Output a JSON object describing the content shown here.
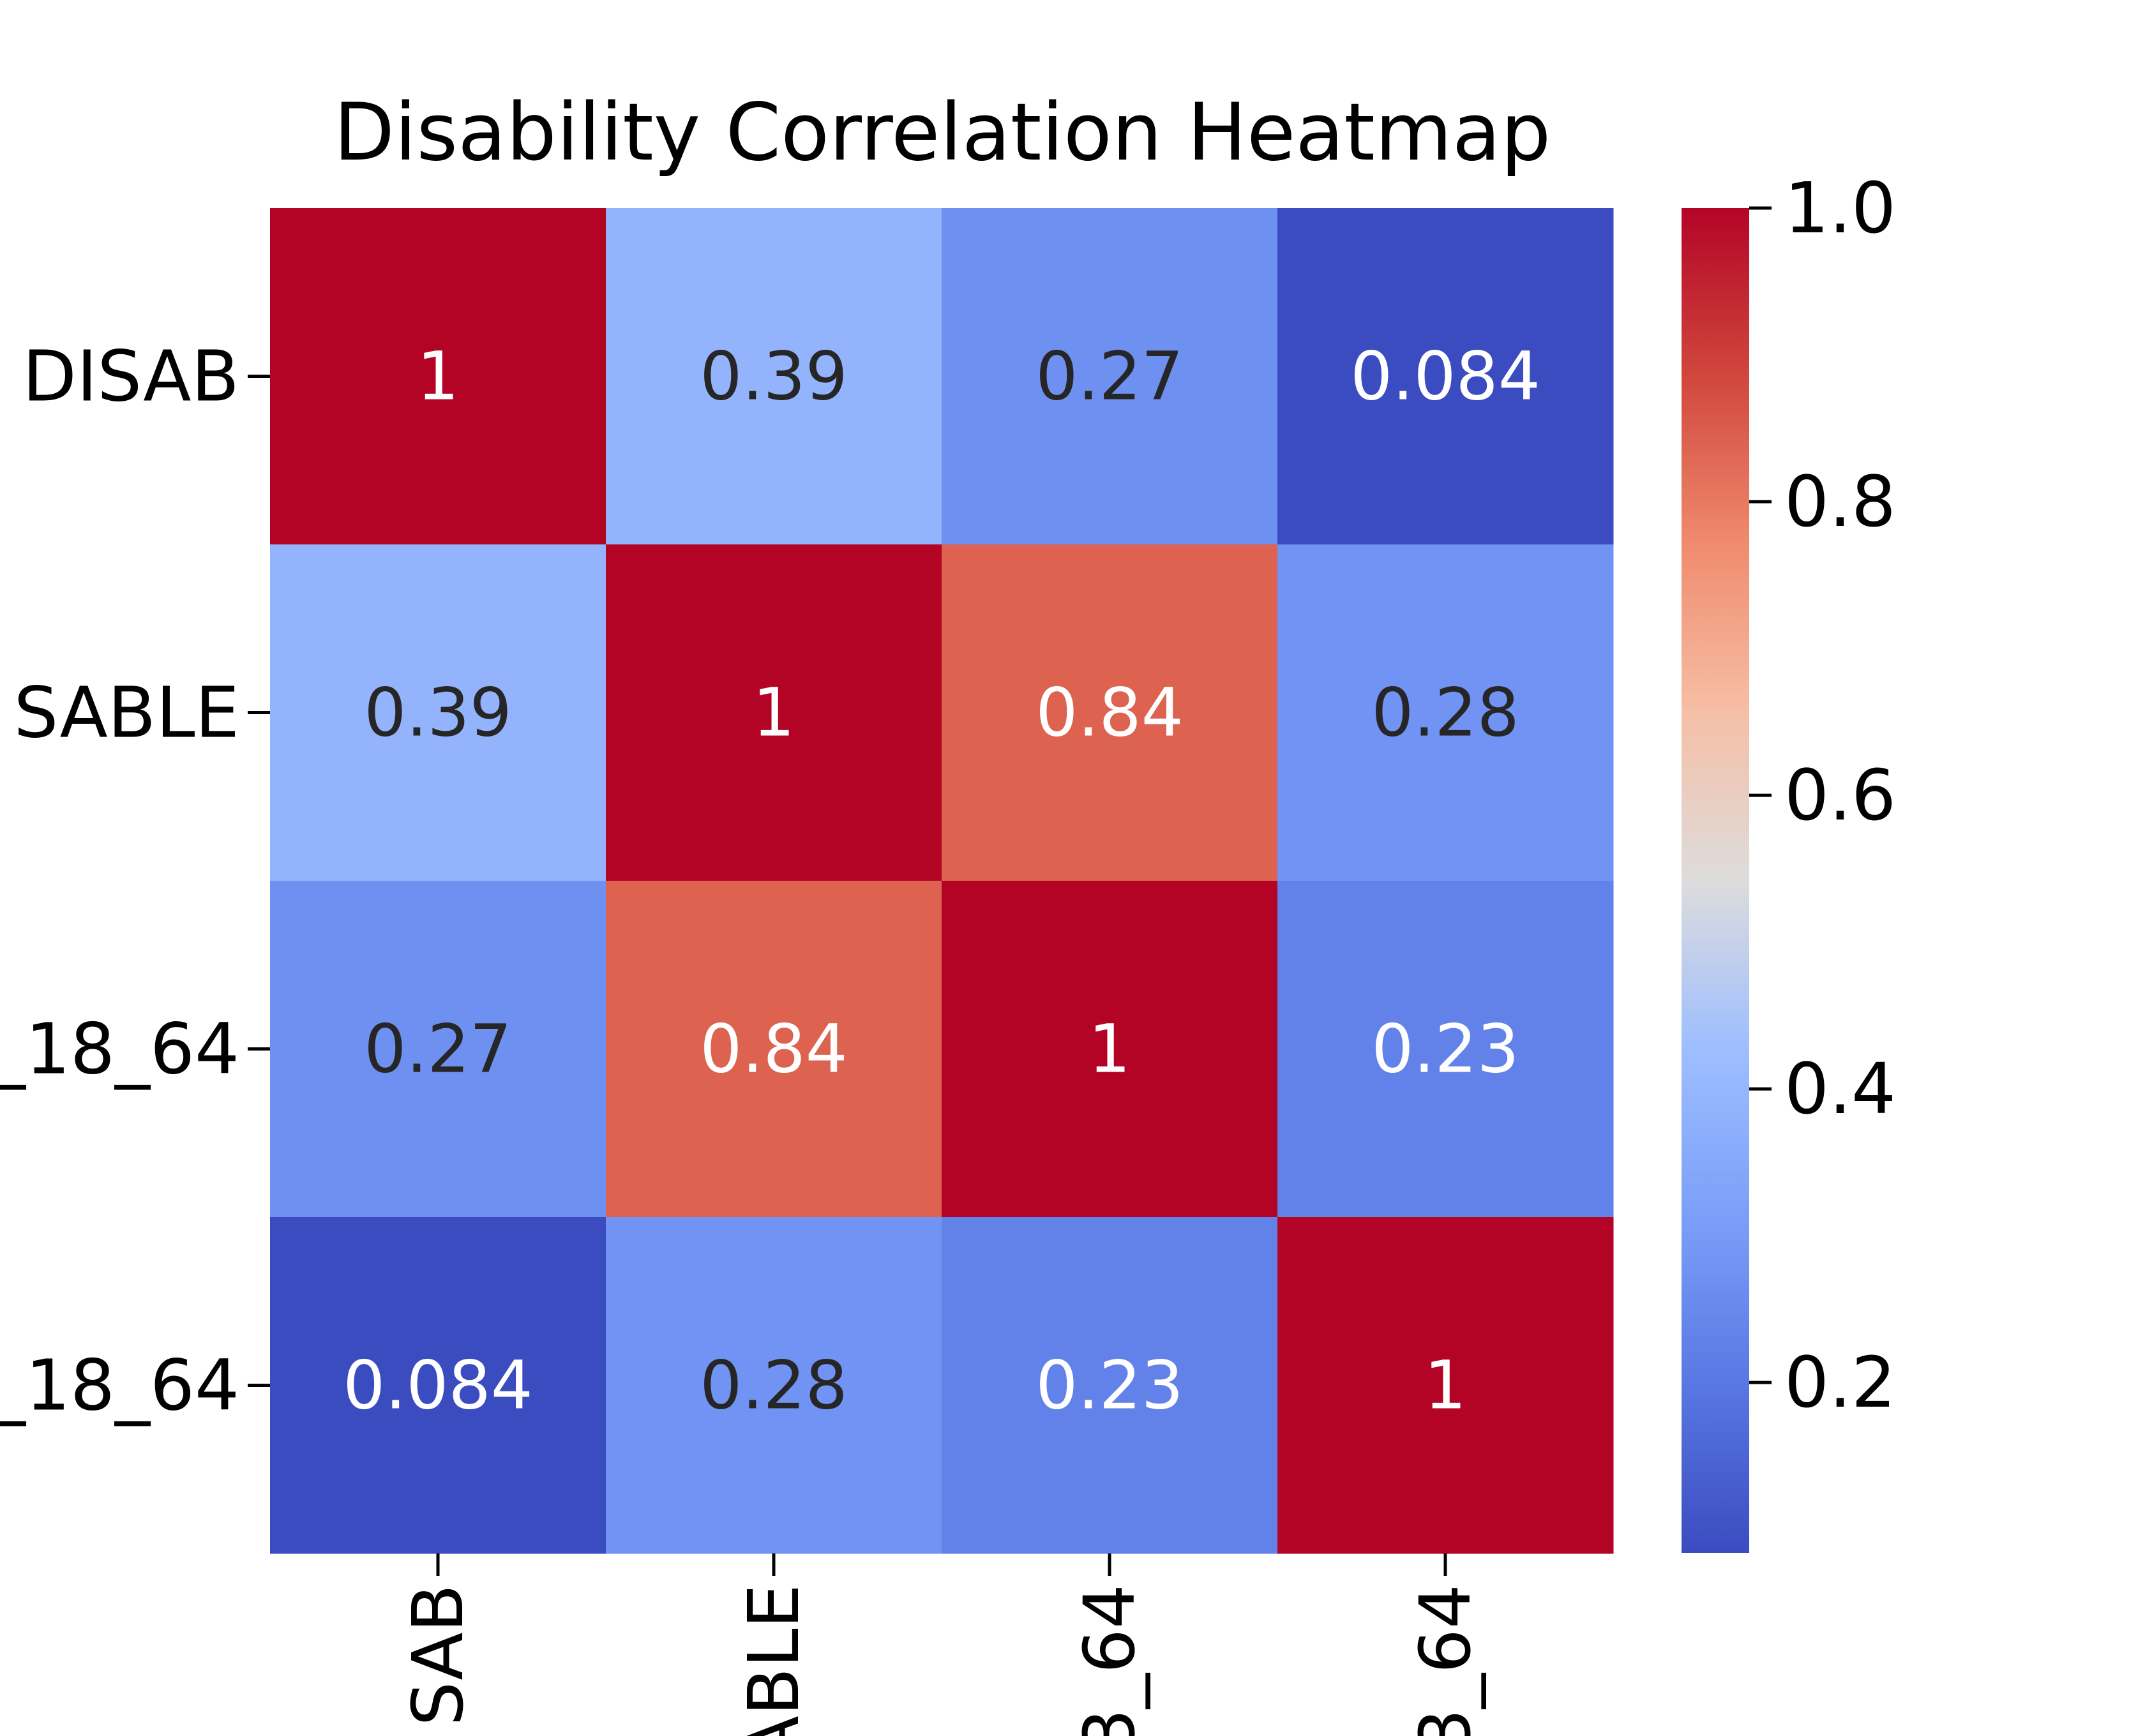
{
  "chart_data": {
    "type": "heatmap",
    "title": "Disability Correlation Heatmap",
    "row_labels": [
      "DISAB",
      "SABLE",
      "_18_64",
      "_18_64"
    ],
    "col_labels": [
      "SAB",
      "ABLE",
      "3_64",
      "3_64"
    ],
    "values": [
      [
        1,
        0.39,
        0.27,
        0.084
      ],
      [
        0.39,
        1,
        0.84,
        0.28
      ],
      [
        0.27,
        0.84,
        1,
        0.23
      ],
      [
        0.084,
        0.28,
        0.23,
        1
      ]
    ],
    "annotations": [
      [
        "1",
        "0.39",
        "0.27",
        "0.084"
      ],
      [
        "0.39",
        "1",
        "0.84",
        "0.28"
      ],
      [
        "0.27",
        "0.84",
        "1",
        "0.23"
      ],
      [
        "0.084",
        "0.28",
        "0.23",
        "1"
      ]
    ],
    "colormap": "coolwarm",
    "colorbar": {
      "vmin": 0.084,
      "vmax": 1.0,
      "ticks": [
        0.2,
        0.4,
        0.6,
        0.8,
        1.0
      ],
      "tick_labels": [
        "0.2",
        "0.4",
        "0.6",
        "0.8",
        "1.0"
      ]
    }
  }
}
